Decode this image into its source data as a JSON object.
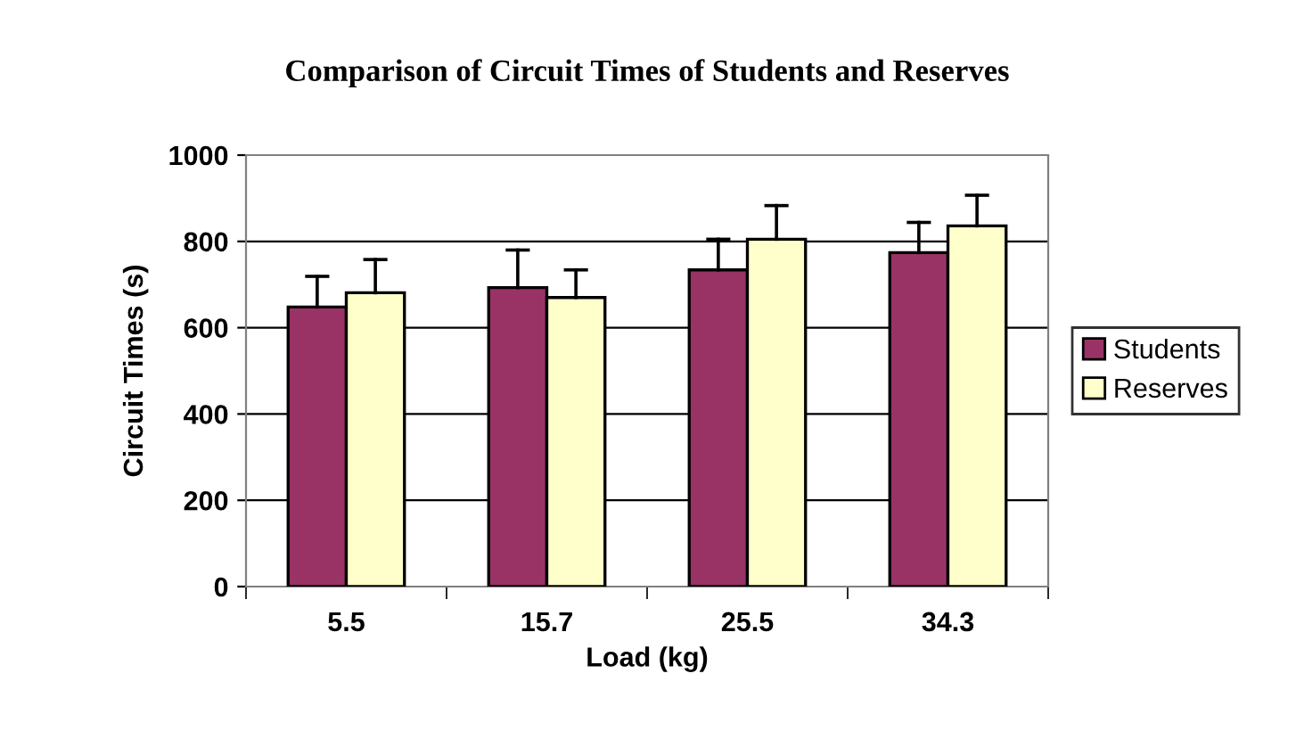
{
  "chart_data": {
    "type": "bar",
    "title": "Comparison of Circuit Times of Students and Reserves",
    "xlabel": "Load (kg)",
    "ylabel": "Circuit Times (s)",
    "categories": [
      "5.5",
      "15.7",
      "25.5",
      "34.3"
    ],
    "series": [
      {
        "name": "Students",
        "color": "#993366",
        "values": [
          648,
          693,
          734,
          774
        ],
        "errors": [
          [
            648,
            719
          ],
          [
            693,
            780
          ],
          [
            734,
            805
          ],
          [
            774,
            844
          ]
        ]
      },
      {
        "name": "Reserves",
        "color": "#ffffcc",
        "values": [
          681,
          670,
          805,
          836
        ],
        "errors": [
          [
            681,
            758
          ],
          [
            670,
            734
          ],
          [
            805,
            883
          ],
          [
            836,
            907
          ]
        ]
      }
    ],
    "ylim": [
      0,
      1000
    ],
    "yticks": [
      0,
      200,
      400,
      600,
      800,
      1000
    ],
    "grid": "y",
    "legend": "right"
  }
}
